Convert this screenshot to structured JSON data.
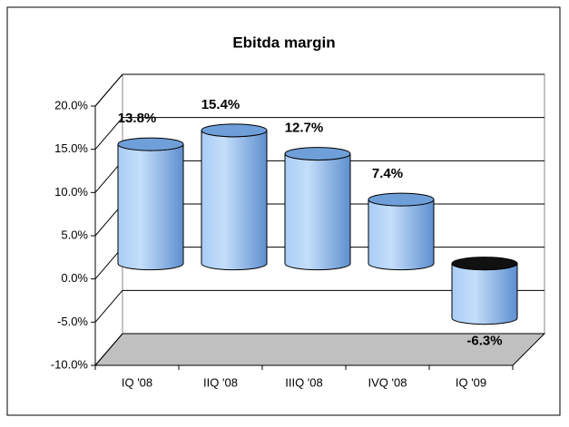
{
  "chart_data": {
    "type": "bar",
    "title": "Ebitda margin",
    "categories": [
      "IQ '08",
      "IIQ '08",
      "IIIQ '08",
      "IVQ '08",
      "IQ '09"
    ],
    "values": [
      13.8,
      15.4,
      12.7,
      7.4,
      -6.3
    ],
    "value_labels": [
      "13.8%",
      "15.4%",
      "12.7%",
      "7.4%",
      "-6.3%"
    ],
    "color": "#8fbdf0",
    "ylim": [
      -10,
      20
    ],
    "yticks": [
      {
        "value": -10,
        "label": "-10.0%"
      },
      {
        "value": -5,
        "label": "-5.0%"
      },
      {
        "value": 0,
        "label": "0.0%"
      },
      {
        "value": 5,
        "label": "5.0%"
      },
      {
        "value": 10,
        "label": "10.0%"
      },
      {
        "value": 15,
        "label": "15.0%"
      },
      {
        "value": 20,
        "label": "20.0%"
      }
    ],
    "grid": true
  }
}
